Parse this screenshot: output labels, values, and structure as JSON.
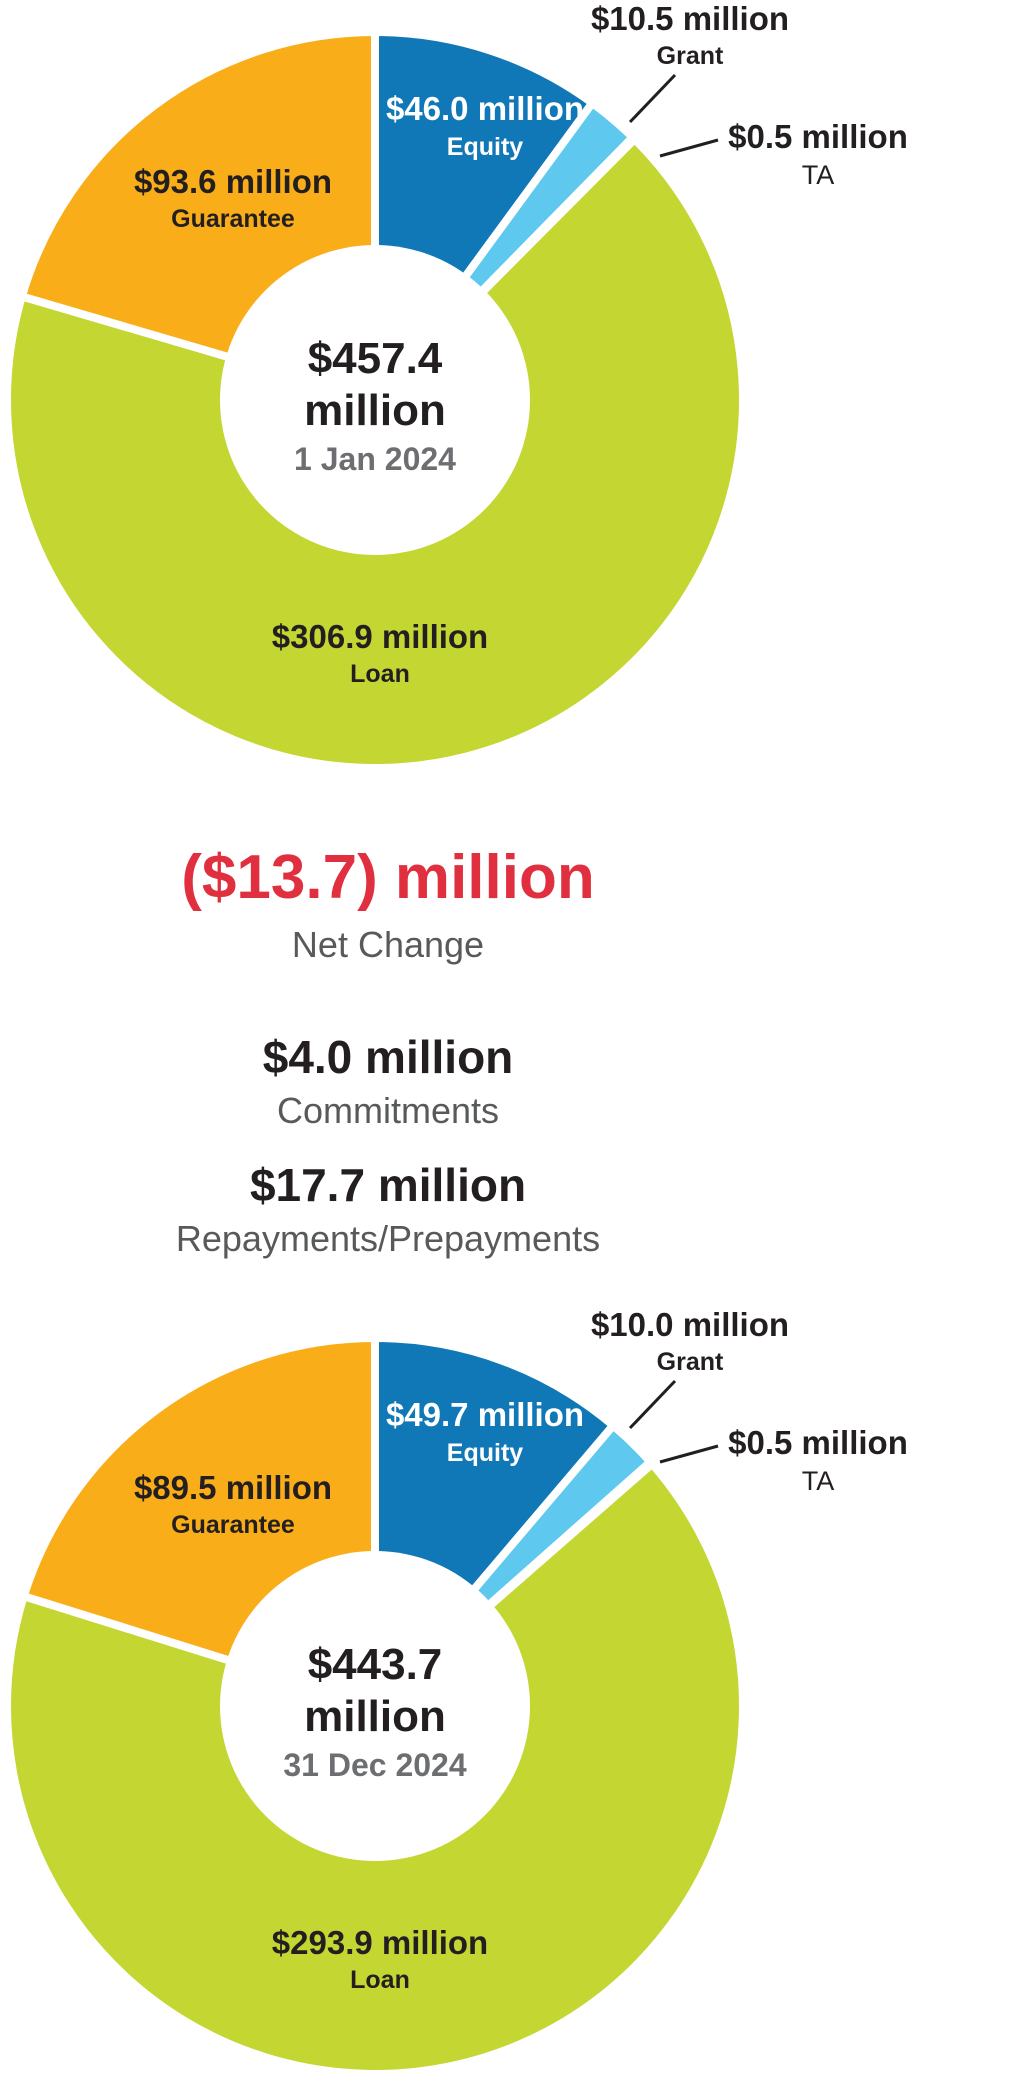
{
  "colors": {
    "equity": "#1178b8",
    "grant": "#5ec8ee",
    "ta": "#e7e51e",
    "loan": "#c4d631",
    "guarantee": "#f9ae19",
    "negative": "#e0303f",
    "text_dark": "#231f20",
    "text_gray": "#6d6e71"
  },
  "chart_data": [
    {
      "type": "donut",
      "total_label": "$457.4",
      "total_unit": "million",
      "date": "1 Jan 2024",
      "slices": [
        {
          "name": "Equity",
          "value": 46.0,
          "label": "$46.0 million",
          "color": "#1178b8"
        },
        {
          "name": "Grant",
          "value": 10.5,
          "label": "$10.5 million",
          "color": "#5ec8ee"
        },
        {
          "name": "TA",
          "value": 0.5,
          "label": "$0.5 million",
          "color": "#e7e51e"
        },
        {
          "name": "Loan",
          "value": 306.9,
          "label": "$306.9 million",
          "color": "#c4d631"
        },
        {
          "name": "Guarantee",
          "value": 93.6,
          "label": "$93.6 million",
          "color": "#f9ae19"
        }
      ]
    },
    {
      "type": "donut",
      "total_label": "$443.7",
      "total_unit": "million",
      "date": "31 Dec 2024",
      "slices": [
        {
          "name": "Equity",
          "value": 49.7,
          "label": "$49.7 million",
          "color": "#1178b8"
        },
        {
          "name": "Grant",
          "value": 10.0,
          "label": "$10.0 million",
          "color": "#5ec8ee"
        },
        {
          "name": "TA",
          "value": 0.5,
          "label": "$0.5 million",
          "color": "#e7e51e"
        },
        {
          "name": "Loan",
          "value": 293.9,
          "label": "$293.9 million",
          "color": "#c4d631"
        },
        {
          "name": "Guarantee",
          "value": 89.5,
          "label": "$89.5 million",
          "color": "#f9ae19"
        }
      ]
    }
  ],
  "net_change": {
    "value": "($13.7) million",
    "label": "Net Change"
  },
  "commitments": {
    "value": "$4.0 million",
    "label": "Commitments"
  },
  "repayments": {
    "value": "$17.7 million",
    "label": "Repayments/Prepayments"
  }
}
